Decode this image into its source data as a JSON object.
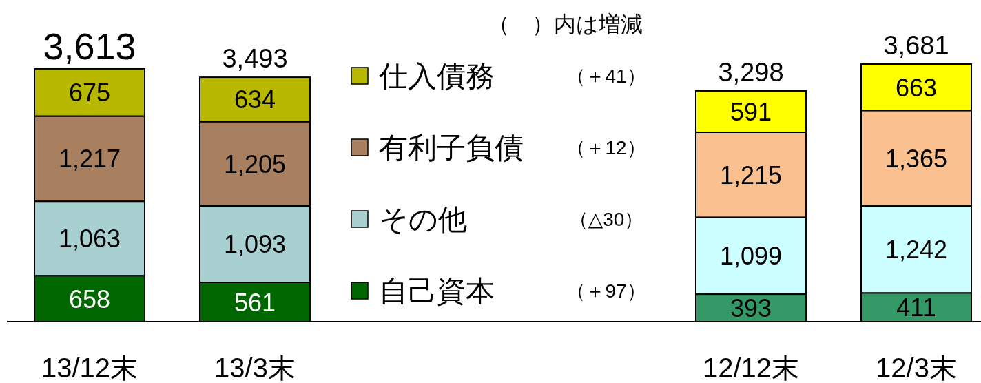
{
  "chart_data": {
    "type": "bar",
    "stacked": true,
    "legend": "top",
    "categories": [
      "13/12末",
      "13/3末",
      "12/12末",
      "12/3末"
    ],
    "series": [
      {
        "name": "自己資本",
        "color": "#006600",
        "colors": [
          "#006600",
          "#006600",
          "#339966",
          "#339966"
        ],
        "values": [
          658,
          561,
          393,
          411
        ],
        "value_labels": [
          "658",
          "561",
          "393",
          "411"
        ]
      },
      {
        "name": "その他",
        "color": "#a8d0d0",
        "colors": [
          "#a8d0d0",
          "#a8d0d0",
          "#ccffff",
          "#ccffff"
        ],
        "values": [
          1063,
          1093,
          1099,
          1242
        ],
        "value_labels": [
          "1,063",
          "1,093",
          "1,099",
          "1,242"
        ]
      },
      {
        "name": "有利子負債",
        "color": "#a88060",
        "colors": [
          "#a88060",
          "#a88060",
          "#fac090",
          "#fac090"
        ],
        "values": [
          1217,
          1205,
          1215,
          1365
        ],
        "value_labels": [
          "1,217",
          "1,205",
          "1,215",
          "1,365"
        ]
      },
      {
        "name": "仕入債務",
        "color": "#b8b800",
        "colors": [
          "#b8b800",
          "#b8b800",
          "#ffff00",
          "#ffff00"
        ],
        "values": [
          675,
          634,
          591,
          663
        ],
        "value_labels": [
          "675",
          "634",
          "591",
          "663"
        ]
      }
    ],
    "totals": [
      "3,613",
      "3,493",
      "3,298",
      "3,681"
    ],
    "annotations": [
      "（　）内は増減",
      "（＋41）",
      "（＋12）",
      "（△30）",
      "（＋97）"
    ]
  }
}
